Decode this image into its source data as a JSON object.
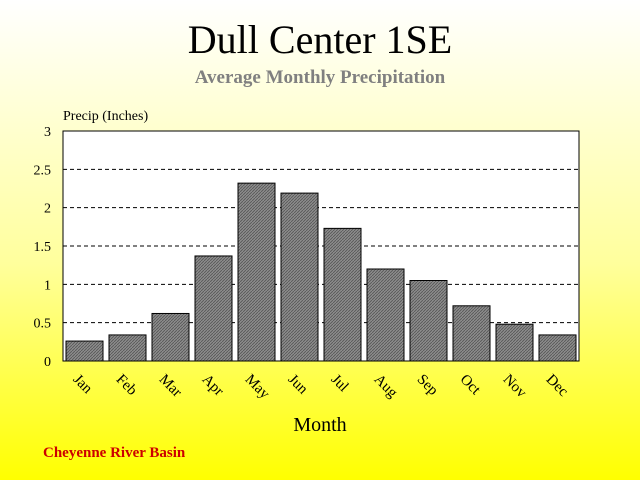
{
  "colors": {
    "bar_fill": "#808080",
    "footer_text": "#cc0000",
    "subtitle_text": "#808080"
  },
  "chart_data": {
    "type": "bar",
    "title": "Dull Center 1SE",
    "subtitle": "Average Monthly Precipitation",
    "ylabel": "Precip (Inches)",
    "xlabel": "Month",
    "categories": [
      "Jan",
      "Feb",
      "Mar",
      "Apr",
      "May",
      "Jun",
      "Jul",
      "Aug",
      "Sep",
      "Oct",
      "Nov",
      "Dec"
    ],
    "values": [
      0.26,
      0.34,
      0.62,
      1.37,
      2.32,
      2.19,
      1.73,
      1.2,
      1.05,
      0.72,
      0.48,
      0.34
    ],
    "ylim": [
      0,
      3
    ],
    "yticks": [
      "0",
      "0.5",
      "1",
      "1.5",
      "2",
      "2.5",
      "3"
    ],
    "grid": true
  },
  "footer": "Cheyenne River Basin"
}
